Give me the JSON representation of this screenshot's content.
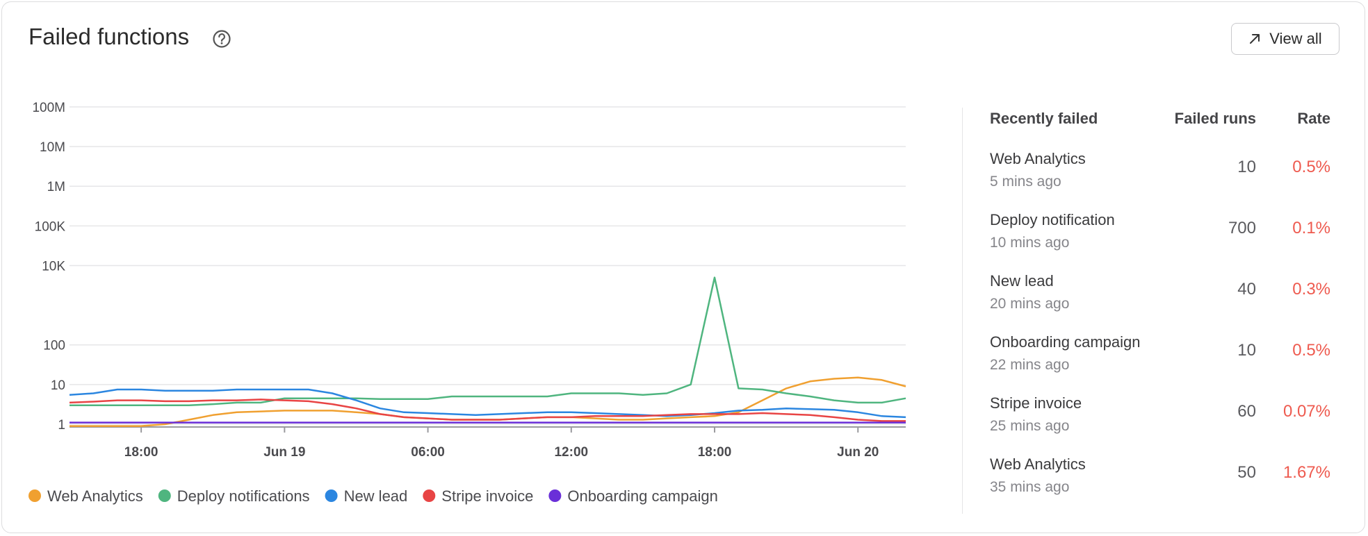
{
  "header": {
    "title": "Failed functions",
    "button": "View all"
  },
  "chart_data": {
    "type": "line",
    "log_scale": true,
    "grid": true,
    "categories": [
      null,
      null,
      null,
      "18:00",
      null,
      null,
      null,
      null,
      null,
      "Jun 19",
      null,
      null,
      null,
      null,
      null,
      "06:00",
      null,
      null,
      null,
      null,
      null,
      "12:00",
      null,
      null,
      null,
      null,
      null,
      "18:00",
      null,
      null,
      null,
      null,
      null,
      "Jun 20",
      null,
      null
    ],
    "ylim": [
      0.85,
      100000000
    ],
    "yticks": [
      1,
      10,
      100,
      {
        "value": 10000,
        "label": "10K"
      },
      {
        "value": 100000,
        "label": "100K"
      },
      {
        "value": 1000000,
        "label": "1M"
      },
      {
        "value": 10000000,
        "label": "10M"
      },
      {
        "value": 100000000,
        "label": "100M"
      }
    ],
    "series": [
      {
        "name": "Web Analytics",
        "color": "#f0a030",
        "values": [
          0.9,
          0.9,
          0.9,
          0.9,
          1,
          1.3,
          1.7,
          2,
          2.1,
          2.2,
          2.2,
          2.2,
          2,
          1.8,
          1.5,
          1.4,
          1.3,
          1.3,
          1.3,
          1.4,
          1.5,
          1.5,
          1.4,
          1.3,
          1.3,
          1.4,
          1.5,
          1.6,
          2,
          4,
          8,
          12,
          14,
          15,
          13,
          9
        ]
      },
      {
        "name": "Deploy notifications",
        "color": "#4fb57f",
        "values": [
          3,
          3,
          3,
          3,
          3,
          3,
          3.2,
          3.5,
          3.5,
          4.5,
          4.5,
          4.5,
          4.5,
          4.3,
          4.3,
          4.3,
          5,
          5,
          5,
          5,
          5,
          6,
          6,
          6,
          5.5,
          6,
          10,
          5000,
          8,
          7.5,
          6,
          5,
          4,
          3.5,
          3.5,
          4.5
        ]
      },
      {
        "name": "New lead",
        "color": "#2b86e0",
        "values": [
          5.5,
          6,
          7.5,
          7.5,
          7,
          7,
          7,
          7.5,
          7.5,
          7.5,
          7.5,
          6,
          4,
          2.5,
          2,
          1.9,
          1.8,
          1.7,
          1.8,
          1.9,
          2,
          2,
          1.9,
          1.8,
          1.7,
          1.6,
          1.7,
          1.9,
          2.2,
          2.3,
          2.5,
          2.4,
          2.3,
          2,
          1.6,
          1.5
        ]
      },
      {
        "name": "Stripe invoice",
        "color": "#e84444",
        "values": [
          3.5,
          3.7,
          4,
          4,
          3.8,
          3.8,
          4,
          4,
          4.2,
          4,
          3.8,
          3.2,
          2.5,
          1.8,
          1.5,
          1.4,
          1.3,
          1.3,
          1.3,
          1.4,
          1.5,
          1.5,
          1.6,
          1.6,
          1.6,
          1.7,
          1.8,
          1.8,
          1.8,
          1.9,
          1.8,
          1.7,
          1.5,
          1.3,
          1.2,
          1.2
        ]
      },
      {
        "name": "Onboarding campaign",
        "color": "#6a2fd8",
        "values": [
          1.1,
          1.1,
          1.1,
          1.1,
          1.1,
          1.1,
          1.1,
          1.1,
          1.1,
          1.1,
          1.1,
          1.1,
          1.1,
          1.1,
          1.1,
          1.1,
          1.1,
          1.1,
          1.1,
          1.1,
          1.1,
          1.1,
          1.1,
          1.1,
          1.1,
          1.1,
          1.1,
          1.1,
          1.1,
          1.1,
          1.1,
          1.1,
          1.1,
          1.1,
          1.1,
          1.1
        ]
      }
    ]
  },
  "table": {
    "columns": [
      "Recently failed",
      "Failed runs",
      "Rate"
    ],
    "rows": [
      {
        "name": "Web Analytics",
        "time": "5 mins ago",
        "runs": 10,
        "rate": "0.5%"
      },
      {
        "name": "Deploy notification",
        "time": "10 mins ago",
        "runs": 700,
        "rate": "0.1%"
      },
      {
        "name": "New lead",
        "time": "20 mins ago",
        "runs": 40,
        "rate": "0.3%"
      },
      {
        "name": "Onboarding campaign",
        "time": "22 mins ago",
        "runs": 10,
        "rate": "0.5%"
      },
      {
        "name": "Stripe invoice",
        "time": "25 mins ago",
        "runs": 60,
        "rate": "0.07%"
      },
      {
        "name": "Web Analytics",
        "time": "35 mins ago",
        "runs": 50,
        "rate": "1.67%"
      }
    ]
  }
}
